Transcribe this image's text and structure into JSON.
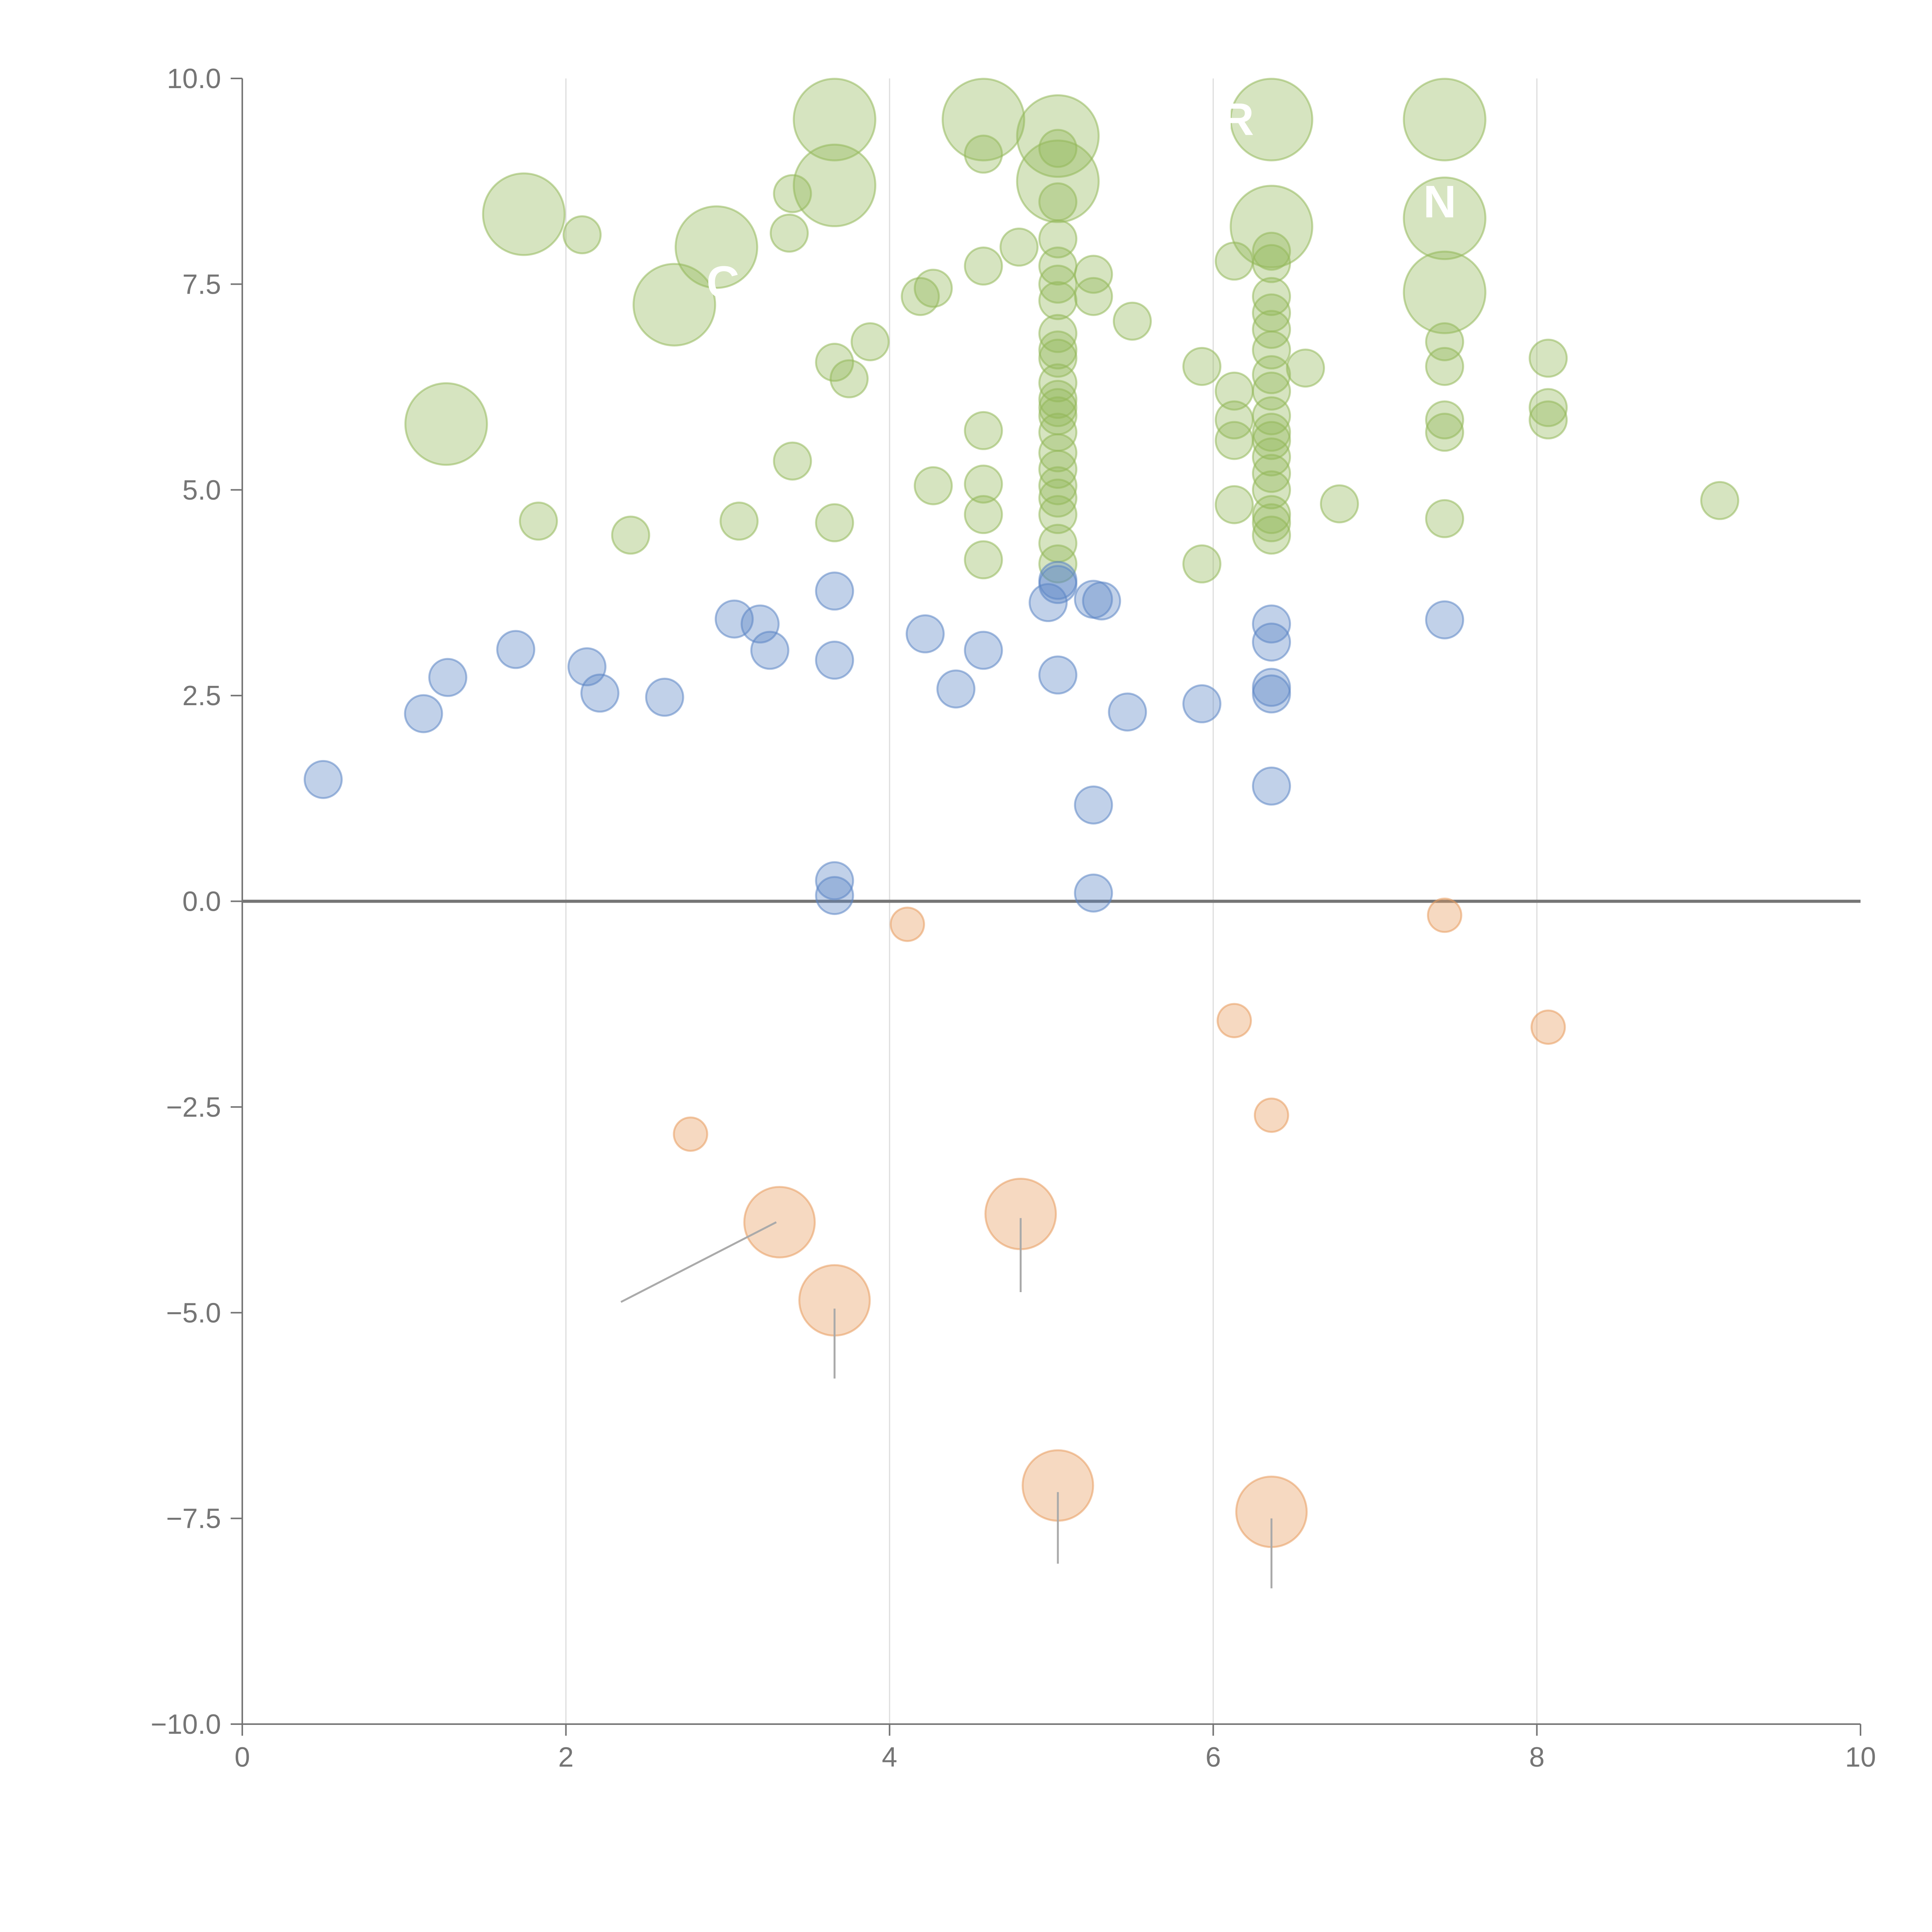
{
  "chart_data": {
    "type": "scatter",
    "subtype": "bubble",
    "title": "",
    "xlabel": "",
    "ylabel": "",
    "xlim": [
      0,
      10
    ],
    "ylim": [
      -10,
      10
    ],
    "x_ticks": [
      "0",
      "2",
      "4",
      "6",
      "8",
      "10"
    ],
    "y_ticks": [
      "10.0",
      "7.5",
      "5.0",
      "2.5",
      "0.0",
      "−2.5",
      "−5.0",
      "−7.5",
      "−10.0"
    ],
    "x_gridlines": [
      2,
      4,
      6,
      8
    ],
    "zero_line": 0,
    "grid": "vertical",
    "legend": "none",
    "colors": {
      "green": "#93b85a",
      "blue": "#5b85c4",
      "orange": "#e89a5c",
      "axis": "#757575",
      "grid": "#dddddd",
      "leader": "#aaaaaa"
    },
    "series": [
      {
        "name": "green",
        "points": [
          [
            3.66,
            9.5,
            2.2
          ],
          [
            4.58,
            9.5,
            2.2
          ],
          [
            6.36,
            9.5,
            2.2
          ],
          [
            7.43,
            9.5,
            2.2
          ],
          [
            5.04,
            9.3,
            2.2
          ],
          [
            3.66,
            8.7,
            2.2
          ],
          [
            5.04,
            8.75,
            2.2
          ],
          [
            1.74,
            8.35,
            2.2
          ],
          [
            7.43,
            8.3,
            2.2
          ],
          [
            6.36,
            8.2,
            2.2
          ],
          [
            2.93,
            7.95,
            2.2
          ],
          [
            2.67,
            7.25,
            2.2
          ],
          [
            7.43,
            7.4,
            2.2
          ],
          [
            1.26,
            5.8,
            2.2
          ],
          [
            4.58,
            9.08,
            1
          ],
          [
            5.04,
            9.15,
            1
          ],
          [
            3.4,
            8.6,
            1
          ],
          [
            2.1,
            8.1,
            1
          ],
          [
            3.38,
            8.12,
            1
          ],
          [
            5.04,
            8.5,
            1
          ],
          [
            5.04,
            8.05,
            1
          ],
          [
            4.8,
            7.95,
            1
          ],
          [
            4.58,
            7.72,
            1
          ],
          [
            5.04,
            7.72,
            1
          ],
          [
            6.13,
            7.78,
            1
          ],
          [
            6.36,
            7.9,
            1
          ],
          [
            6.36,
            7.75,
            1
          ],
          [
            5.26,
            7.62,
            1
          ],
          [
            5.04,
            7.5,
            1
          ],
          [
            4.27,
            7.45,
            1
          ],
          [
            4.19,
            7.35,
            1
          ],
          [
            5.26,
            7.35,
            1
          ],
          [
            6.36,
            7.35,
            1
          ],
          [
            5.04,
            7.3,
            1
          ],
          [
            5.5,
            7.05,
            1
          ],
          [
            6.36,
            7.15,
            1
          ],
          [
            3.88,
            6.8,
            1
          ],
          [
            5.04,
            6.9,
            1
          ],
          [
            6.36,
            6.95,
            1
          ],
          [
            7.43,
            6.8,
            1
          ],
          [
            3.66,
            6.55,
            1
          ],
          [
            3.75,
            6.35,
            1
          ],
          [
            5.04,
            6.7,
            1
          ],
          [
            6.36,
            6.7,
            1
          ],
          [
            5.93,
            6.5,
            1
          ],
          [
            6.57,
            6.48,
            1
          ],
          [
            7.43,
            6.5,
            1
          ],
          [
            8.07,
            6.6,
            1
          ],
          [
            5.04,
            6.3,
            1
          ],
          [
            6.13,
            6.2,
            1
          ],
          [
            6.36,
            6.2,
            1
          ],
          [
            8.07,
            6.0,
            1
          ],
          [
            5.04,
            6.0,
            1
          ],
          [
            6.13,
            5.85,
            1
          ],
          [
            7.43,
            5.85,
            1
          ],
          [
            6.36,
            5.9,
            1
          ],
          [
            8.07,
            5.85,
            1
          ],
          [
            4.58,
            5.72,
            1
          ],
          [
            5.04,
            5.7,
            1
          ],
          [
            6.13,
            5.6,
            1
          ],
          [
            6.36,
            5.6,
            1
          ],
          [
            7.43,
            5.7,
            1
          ],
          [
            5.04,
            5.45,
            1
          ],
          [
            6.36,
            5.4,
            1
          ],
          [
            3.4,
            5.35,
            1
          ],
          [
            4.27,
            5.05,
            1
          ],
          [
            4.58,
            5.07,
            1
          ],
          [
            5.04,
            5.05,
            1
          ],
          [
            6.36,
            5.0,
            1
          ],
          [
            9.13,
            4.87,
            1
          ],
          [
            6.13,
            4.82,
            1
          ],
          [
            6.78,
            4.83,
            1
          ],
          [
            5.04,
            4.9,
            1
          ],
          [
            1.83,
            4.62,
            1
          ],
          [
            3.07,
            4.62,
            1
          ],
          [
            3.66,
            4.6,
            1
          ],
          [
            4.58,
            4.7,
            1
          ],
          [
            5.04,
            4.7,
            1
          ],
          [
            6.36,
            4.7,
            1
          ],
          [
            7.43,
            4.65,
            1
          ],
          [
            2.4,
            4.45,
            1
          ],
          [
            5.04,
            4.35,
            1
          ],
          [
            6.36,
            4.45,
            1
          ],
          [
            4.58,
            4.15,
            1
          ],
          [
            5.93,
            4.1,
            1
          ],
          [
            5.04,
            4.1,
            1
          ],
          [
            5.04,
            6.6,
            1
          ],
          [
            5.04,
            6.1,
            1
          ],
          [
            5.04,
            5.9,
            1
          ],
          [
            6.36,
            5.7,
            1
          ],
          [
            6.36,
            5.2,
            1
          ],
          [
            6.36,
            6.4,
            1
          ],
          [
            5.04,
            5.25,
            1
          ],
          [
            6.36,
            4.6,
            1
          ]
        ]
      },
      {
        "name": "blue",
        "points": [
          [
            0.5,
            1.48,
            1
          ],
          [
            1.12,
            2.28,
            1
          ],
          [
            1.27,
            2.72,
            1
          ],
          [
            1.69,
            3.06,
            1
          ],
          [
            2.13,
            2.85,
            1
          ],
          [
            2.21,
            2.53,
            1
          ],
          [
            2.61,
            2.48,
            1
          ],
          [
            3.04,
            3.43,
            1
          ],
          [
            3.2,
            3.37,
            1
          ],
          [
            3.26,
            3.05,
            1
          ],
          [
            3.66,
            3.77,
            1
          ],
          [
            3.66,
            2.93,
            1
          ],
          [
            4.22,
            3.25,
            1
          ],
          [
            4.41,
            2.58,
            1
          ],
          [
            4.58,
            3.05,
            1
          ],
          [
            4.98,
            3.63,
            1
          ],
          [
            5.04,
            3.9,
            1
          ],
          [
            5.04,
            3.85,
            1
          ],
          [
            5.04,
            2.75,
            1
          ],
          [
            5.26,
            3.67,
            1
          ],
          [
            5.31,
            3.65,
            1
          ],
          [
            5.47,
            2.3,
            1
          ],
          [
            5.93,
            2.4,
            1
          ],
          [
            6.36,
            3.37,
            1
          ],
          [
            6.36,
            3.15,
            1
          ],
          [
            6.36,
            2.6,
            1
          ],
          [
            6.36,
            2.52,
            1
          ],
          [
            7.43,
            3.42,
            1
          ],
          [
            5.26,
            1.17,
            1
          ],
          [
            6.36,
            1.4,
            1
          ],
          [
            3.66,
            0.25,
            1
          ],
          [
            3.66,
            0.07,
            1
          ],
          [
            5.26,
            0.1,
            1
          ]
        ]
      },
      {
        "name": "orange",
        "points": [
          [
            4.11,
            -0.28,
            0.9
          ],
          [
            7.43,
            -0.17,
            0.9
          ],
          [
            6.13,
            -1.45,
            0.9
          ],
          [
            8.07,
            -1.53,
            0.9
          ],
          [
            2.77,
            -2.83,
            0.9
          ],
          [
            6.36,
            -2.6,
            0.9
          ],
          [
            3.32,
            -3.9,
            1.9
          ],
          [
            4.81,
            -3.8,
            1.9
          ],
          [
            3.66,
            -4.85,
            1.9
          ],
          [
            5.04,
            -7.1,
            1.9
          ],
          [
            6.36,
            -7.42,
            1.9
          ]
        ]
      }
    ],
    "leader_lines": [
      [
        3.3,
        -3.9,
        2.34,
        -4.87
      ],
      [
        4.81,
        -3.85,
        4.81,
        -4.75
      ],
      [
        3.66,
        -4.95,
        3.66,
        -5.8
      ],
      [
        5.04,
        -7.18,
        5.04,
        -8.05
      ],
      [
        6.36,
        -7.5,
        6.36,
        -8.35
      ]
    ],
    "bubble_labels": [
      {
        "text": "R",
        "x": 6.15,
        "y": 9.5
      },
      {
        "text": "N",
        "x": 7.4,
        "y": 8.5
      },
      {
        "text": "C",
        "x": 2.97,
        "y": 7.52
      }
    ]
  }
}
